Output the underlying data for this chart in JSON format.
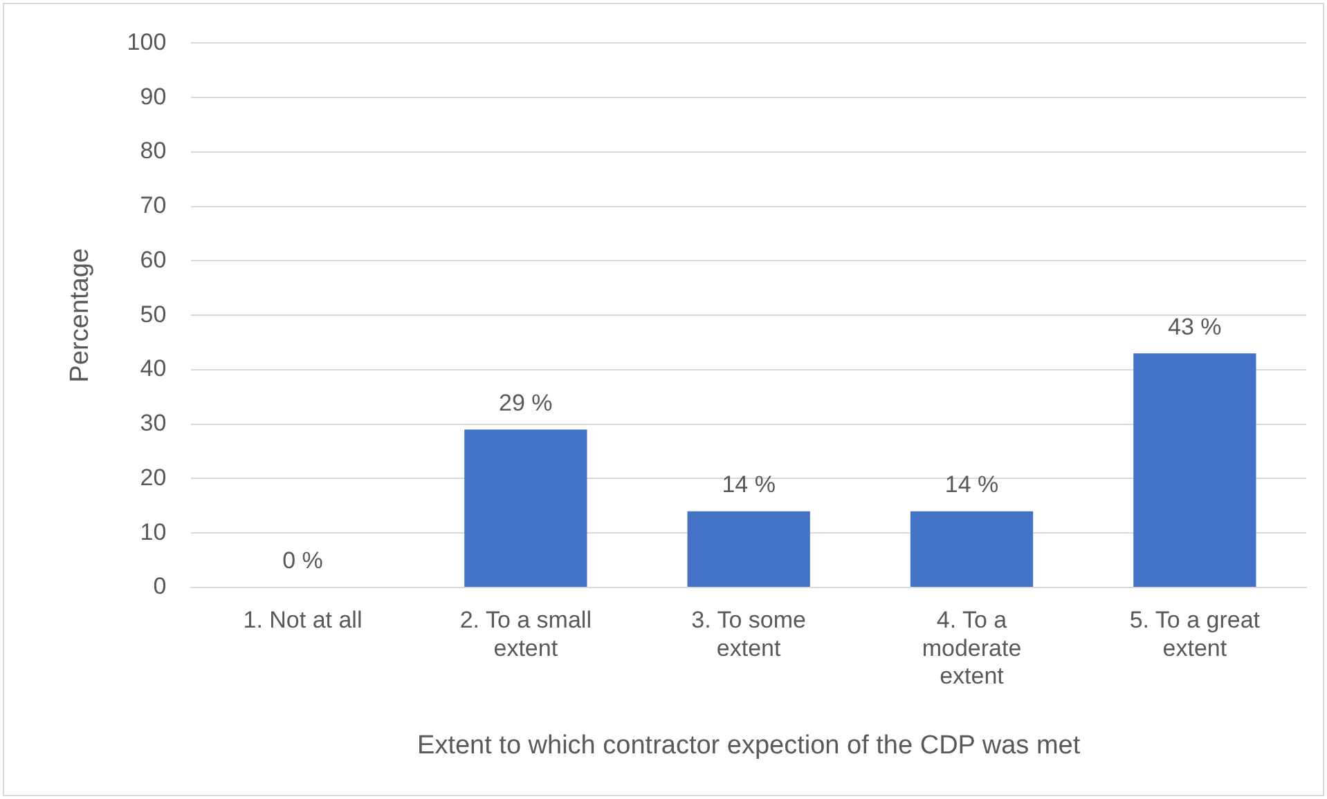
{
  "chart_data": {
    "type": "bar",
    "xlabel": "Extent to which contractor expection of the CDP was met",
    "ylabel": "Percentage",
    "categories": [
      "1. Not at all",
      "2. To a small extent",
      "3. To some extent",
      "4. To a moderate extent",
      "5. To a great extent"
    ],
    "values": [
      0,
      29,
      14,
      14,
      43
    ],
    "value_labels": [
      "0 %",
      "29 %",
      "14 %",
      "14 %",
      "43 %"
    ],
    "color": "#4472c4",
    "ylim": [
      0,
      100
    ],
    "yticks": [
      0,
      10,
      20,
      30,
      40,
      50,
      60,
      70,
      80,
      90,
      100
    ],
    "grid": "y",
    "legend": false
  }
}
